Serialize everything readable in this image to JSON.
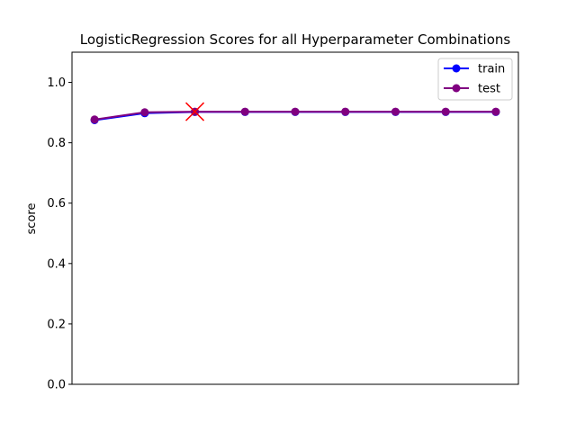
{
  "chart_data": {
    "type": "line",
    "title": "LogisticRegression Scores for all Hyperparameter Combinations",
    "xlabel": "",
    "ylabel": "score",
    "ylim": [
      0.0,
      1.1
    ],
    "yticks": [
      0.0,
      0.2,
      0.4,
      0.6,
      0.8,
      1.0
    ],
    "ytick_labels": [
      "0.0",
      "0.2",
      "0.4",
      "0.6",
      "0.8",
      "1.0"
    ],
    "x": [
      0,
      1,
      2,
      3,
      4,
      5,
      6,
      7,
      8
    ],
    "xlim": [
      -0.45,
      8.45
    ],
    "x_ticks_shown": false,
    "grid": false,
    "legend_position": "top-right",
    "series": [
      {
        "name": "train",
        "color": "#0000ff",
        "marker": "circle",
        "values": [
          0.875,
          0.898,
          0.902,
          0.902,
          0.902,
          0.902,
          0.902,
          0.902,
          0.902
        ]
      },
      {
        "name": "test",
        "color": "#800080",
        "marker": "circle",
        "values": [
          0.877,
          0.901,
          0.903,
          0.903,
          0.903,
          0.903,
          0.903,
          0.903,
          0.903
        ]
      }
    ],
    "best_point": {
      "x": 2,
      "y": 0.903,
      "marker": "x",
      "color": "#ff0000"
    }
  }
}
